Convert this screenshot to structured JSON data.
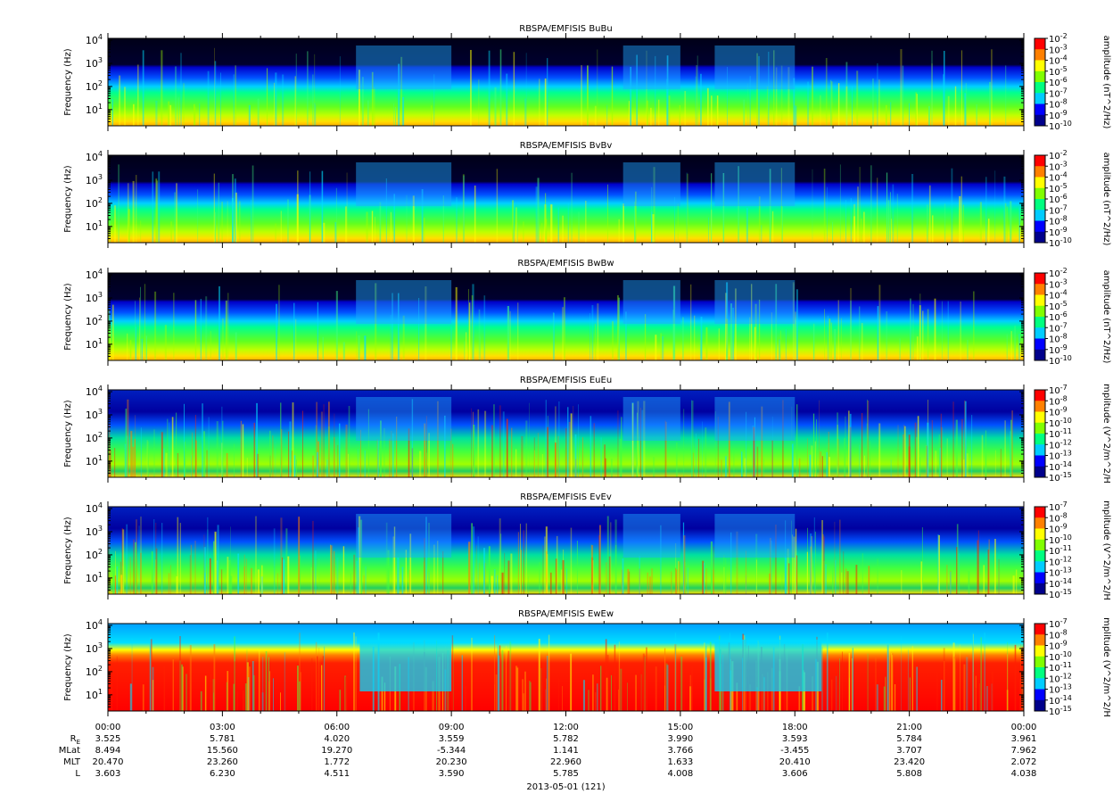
{
  "figure": {
    "date_label": "2013-05-01 (121)",
    "ephemeris": {
      "row_labels": [
        "R",
        "MLat",
        "MLT",
        "L"
      ],
      "re_subscript": "E",
      "rows": [
        [
          "3.525",
          "5.781",
          "4.020",
          "3.559",
          "5.782",
          "3.990",
          "3.593",
          "5.784",
          "3.961"
        ],
        [
          "8.494",
          "15.560",
          "19.270",
          "-5.344",
          "1.141",
          "3.766",
          "-3.455",
          "3.707",
          "7.962"
        ],
        [
          "20.470",
          "23.260",
          "1.772",
          "20.230",
          "22.960",
          "1.633",
          "20.410",
          "23.420",
          "2.072"
        ],
        [
          "3.603",
          "6.230",
          "4.511",
          "3.590",
          "5.785",
          "4.008",
          "3.606",
          "5.808",
          "4.038"
        ]
      ]
    }
  },
  "chart_data": [
    {
      "type": "heatmap",
      "title": "RBSPA/EMFISIS  BuBu",
      "ylabel": "Frequency (Hz)",
      "colorbar_label": "amplitude (nT^2/Hz)",
      "y_scale": "log",
      "ylim_hz": [
        2,
        12000
      ],
      "y_ticks": [
        {
          "base": "10",
          "exp": "1",
          "value": 10
        },
        {
          "base": "10",
          "exp": "2",
          "value": 100
        },
        {
          "base": "10",
          "exp": "3",
          "value": 1000
        },
        {
          "base": "10",
          "exp": "4",
          "value": 10000
        }
      ],
      "x_ticks": [
        "00:00",
        "03:00",
        "06:00",
        "09:00",
        "12:00",
        "15:00",
        "18:00",
        "21:00",
        "00:00"
      ],
      "xlim_hours": [
        0,
        24
      ],
      "colorbar_ticks": [
        {
          "base": "10",
          "exp": "-2"
        },
        {
          "base": "10",
          "exp": "-3"
        },
        {
          "base": "10",
          "exp": "-4"
        },
        {
          "base": "10",
          "exp": "-5"
        },
        {
          "base": "10",
          "exp": "-6"
        },
        {
          "base": "10",
          "exp": "-7"
        },
        {
          "base": "10",
          "exp": "-8"
        },
        {
          "base": "10",
          "exp": "-9"
        },
        {
          "base": "10",
          "exp": "-10"
        }
      ],
      "colorbar_range_exp": [
        -10,
        -2
      ],
      "colormap": [
        "#00008b",
        "#0000ff",
        "#00ccff",
        "#00ff80",
        "#80ff00",
        "#ffff00",
        "#ff8000",
        "#ff0000"
      ]
    },
    {
      "type": "heatmap",
      "title": "RBSPA/EMFISIS  BvBv",
      "ylabel": "Frequency (Hz)",
      "colorbar_label": "amplitude (nT^2/Hz)",
      "y_scale": "log",
      "ylim_hz": [
        2,
        12000
      ],
      "y_ticks": [
        {
          "base": "10",
          "exp": "1",
          "value": 10
        },
        {
          "base": "10",
          "exp": "2",
          "value": 100
        },
        {
          "base": "10",
          "exp": "3",
          "value": 1000
        },
        {
          "base": "10",
          "exp": "4",
          "value": 10000
        }
      ],
      "x_ticks": [
        "00:00",
        "03:00",
        "06:00",
        "09:00",
        "12:00",
        "15:00",
        "18:00",
        "21:00",
        "00:00"
      ],
      "xlim_hours": [
        0,
        24
      ],
      "colorbar_ticks": [
        {
          "base": "10",
          "exp": "-2"
        },
        {
          "base": "10",
          "exp": "-3"
        },
        {
          "base": "10",
          "exp": "-4"
        },
        {
          "base": "10",
          "exp": "-5"
        },
        {
          "base": "10",
          "exp": "-6"
        },
        {
          "base": "10",
          "exp": "-7"
        },
        {
          "base": "10",
          "exp": "-8"
        },
        {
          "base": "10",
          "exp": "-9"
        },
        {
          "base": "10",
          "exp": "-10"
        }
      ],
      "colorbar_range_exp": [
        -10,
        -2
      ],
      "colormap": [
        "#00008b",
        "#0000ff",
        "#00ccff",
        "#00ff80",
        "#80ff00",
        "#ffff00",
        "#ff8000",
        "#ff0000"
      ]
    },
    {
      "type": "heatmap",
      "title": "RBSPA/EMFISIS  BwBw",
      "ylabel": "Frequency (Hz)",
      "colorbar_label": "amplitude (nT^2/Hz)",
      "y_scale": "log",
      "ylim_hz": [
        2,
        12000
      ],
      "y_ticks": [
        {
          "base": "10",
          "exp": "1",
          "value": 10
        },
        {
          "base": "10",
          "exp": "2",
          "value": 100
        },
        {
          "base": "10",
          "exp": "3",
          "value": 1000
        },
        {
          "base": "10",
          "exp": "4",
          "value": 10000
        }
      ],
      "x_ticks": [
        "00:00",
        "03:00",
        "06:00",
        "09:00",
        "12:00",
        "15:00",
        "18:00",
        "21:00",
        "00:00"
      ],
      "xlim_hours": [
        0,
        24
      ],
      "colorbar_ticks": [
        {
          "base": "10",
          "exp": "-2"
        },
        {
          "base": "10",
          "exp": "-3"
        },
        {
          "base": "10",
          "exp": "-4"
        },
        {
          "base": "10",
          "exp": "-5"
        },
        {
          "base": "10",
          "exp": "-6"
        },
        {
          "base": "10",
          "exp": "-7"
        },
        {
          "base": "10",
          "exp": "-8"
        },
        {
          "base": "10",
          "exp": "-9"
        },
        {
          "base": "10",
          "exp": "-10"
        }
      ],
      "colorbar_range_exp": [
        -10,
        -2
      ],
      "colormap": [
        "#00008b",
        "#0000ff",
        "#00ccff",
        "#00ff80",
        "#80ff00",
        "#ffff00",
        "#ff8000",
        "#ff0000"
      ]
    },
    {
      "type": "heatmap",
      "title": "RBSPA/EMFISIS  EuEu",
      "ylabel": "Frequency (Hz)",
      "colorbar_label": "mplitude (V^2/m^2/H",
      "y_scale": "log",
      "ylim_hz": [
        2,
        12000
      ],
      "y_ticks": [
        {
          "base": "10",
          "exp": "1",
          "value": 10
        },
        {
          "base": "10",
          "exp": "2",
          "value": 100
        },
        {
          "base": "10",
          "exp": "3",
          "value": 1000
        },
        {
          "base": "10",
          "exp": "4",
          "value": 10000
        }
      ],
      "x_ticks": [
        "00:00",
        "03:00",
        "06:00",
        "09:00",
        "12:00",
        "15:00",
        "18:00",
        "21:00",
        "00:00"
      ],
      "xlim_hours": [
        0,
        24
      ],
      "colorbar_ticks": [
        {
          "base": "10",
          "exp": "-7"
        },
        {
          "base": "10",
          "exp": "-8"
        },
        {
          "base": "10",
          "exp": "-9"
        },
        {
          "base": "10",
          "exp": "-10"
        },
        {
          "base": "10",
          "exp": "-11"
        },
        {
          "base": "10",
          "exp": "-12"
        },
        {
          "base": "10",
          "exp": "-13"
        },
        {
          "base": "10",
          "exp": "-14"
        },
        {
          "base": "10",
          "exp": "-15"
        }
      ],
      "colorbar_range_exp": [
        -15,
        -7
      ],
      "colormap": [
        "#00008b",
        "#0000ff",
        "#00ccff",
        "#00ff80",
        "#80ff00",
        "#ffff00",
        "#ff8000",
        "#ff0000"
      ]
    },
    {
      "type": "heatmap",
      "title": "RBSPA/EMFISIS  EvEv",
      "ylabel": "Frequency (Hz)",
      "colorbar_label": "mplitude (V^2/m^2/H",
      "y_scale": "log",
      "ylim_hz": [
        2,
        12000
      ],
      "y_ticks": [
        {
          "base": "10",
          "exp": "1",
          "value": 10
        },
        {
          "base": "10",
          "exp": "2",
          "value": 100
        },
        {
          "base": "10",
          "exp": "3",
          "value": 1000
        },
        {
          "base": "10",
          "exp": "4",
          "value": 10000
        }
      ],
      "x_ticks": [
        "00:00",
        "03:00",
        "06:00",
        "09:00",
        "12:00",
        "15:00",
        "18:00",
        "21:00",
        "00:00"
      ],
      "xlim_hours": [
        0,
        24
      ],
      "colorbar_ticks": [
        {
          "base": "10",
          "exp": "-7"
        },
        {
          "base": "10",
          "exp": "-8"
        },
        {
          "base": "10",
          "exp": "-9"
        },
        {
          "base": "10",
          "exp": "-10"
        },
        {
          "base": "10",
          "exp": "-11"
        },
        {
          "base": "10",
          "exp": "-12"
        },
        {
          "base": "10",
          "exp": "-13"
        },
        {
          "base": "10",
          "exp": "-14"
        },
        {
          "base": "10",
          "exp": "-15"
        }
      ],
      "colorbar_range_exp": [
        -15,
        -7
      ],
      "colormap": [
        "#00008b",
        "#0000ff",
        "#00ccff",
        "#00ff80",
        "#80ff00",
        "#ffff00",
        "#ff8000",
        "#ff0000"
      ]
    },
    {
      "type": "heatmap",
      "title": "RBSPA/EMFISIS  EwEw",
      "ylabel": "Frequency (Hz)",
      "colorbar_label": "mplitude (V^2/m^2/H",
      "y_scale": "log",
      "ylim_hz": [
        2,
        12000
      ],
      "y_ticks": [
        {
          "base": "10",
          "exp": "1",
          "value": 10
        },
        {
          "base": "10",
          "exp": "2",
          "value": 100
        },
        {
          "base": "10",
          "exp": "3",
          "value": 1000
        },
        {
          "base": "10",
          "exp": "4",
          "value": 10000
        }
      ],
      "x_ticks": [
        "00:00",
        "03:00",
        "06:00",
        "09:00",
        "12:00",
        "15:00",
        "18:00",
        "21:00",
        "00:00"
      ],
      "xlim_hours": [
        0,
        24
      ],
      "colorbar_ticks": [
        {
          "base": "10",
          "exp": "-7"
        },
        {
          "base": "10",
          "exp": "-8"
        },
        {
          "base": "10",
          "exp": "-9"
        },
        {
          "base": "10",
          "exp": "-10"
        },
        {
          "base": "10",
          "exp": "-11"
        },
        {
          "base": "10",
          "exp": "-12"
        },
        {
          "base": "10",
          "exp": "-13"
        },
        {
          "base": "10",
          "exp": "-14"
        },
        {
          "base": "10",
          "exp": "-15"
        }
      ],
      "colorbar_range_exp": [
        -15,
        -7
      ],
      "colormap": [
        "#00008b",
        "#0000ff",
        "#00ccff",
        "#00ff80",
        "#80ff00",
        "#ffff00",
        "#ff8000",
        "#ff0000"
      ]
    }
  ]
}
